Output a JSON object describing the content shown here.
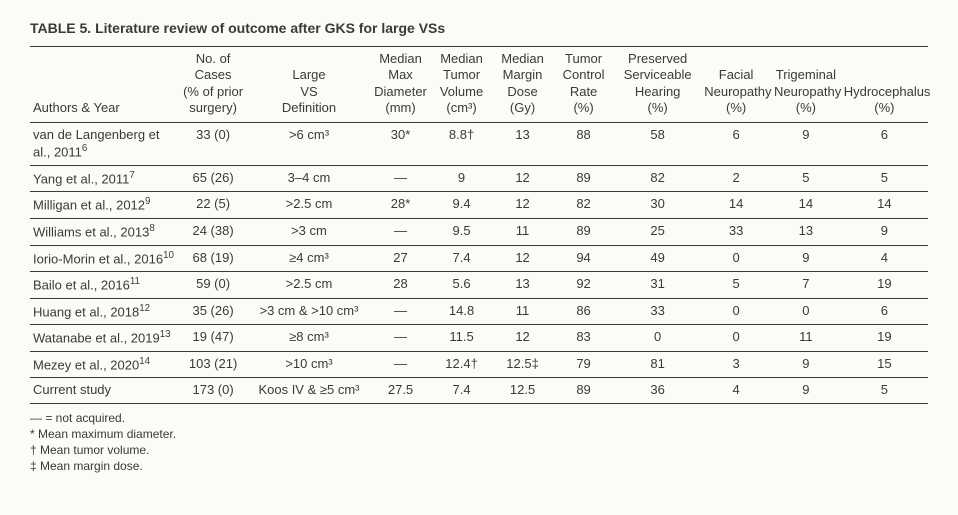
{
  "title": "TABLE 5. Literature review of outcome after GKS for large VSs",
  "columns": [
    "Authors & Year",
    "No. of Cases (% of prior surgery)",
    "Large VS Definition",
    "Median Max Diameter (mm)",
    "Median Tumor Volume (cm³)",
    "Median Margin Dose (Gy)",
    "Tumor Control Rate (%)",
    "Preserved Serviceable Hearing (%)",
    "Facial Neuropathy (%)",
    "Trigeminal Neuropathy (%)",
    "Hydrocephalus (%)"
  ],
  "col_widths_pct": [
    17,
    8,
    14,
    7,
    7,
    7,
    7,
    10,
    8,
    8,
    10
  ],
  "rows": [
    {
      "authors": "van de Langenberg et al., 2011",
      "ref": "6",
      "cells": [
        "33 (0)",
        ">6 cm³",
        "30*",
        "8.8†",
        "13",
        "88",
        "58",
        "6",
        "9",
        "6"
      ],
      "rule": true
    },
    {
      "authors": "Yang et al., 2011",
      "ref": "7",
      "cells": [
        "65 (26)",
        "3–4 cm",
        "—",
        "9",
        "12",
        "89",
        "82",
        "2",
        "5",
        "5"
      ],
      "rule": true
    },
    {
      "authors": "Milligan et al., 2012",
      "ref": "9",
      "cells": [
        "22 (5)",
        ">2.5 cm",
        "28*",
        "9.4",
        "12",
        "82",
        "30",
        "14",
        "14",
        "14"
      ],
      "rule": true
    },
    {
      "authors": "Williams et al., 2013",
      "ref": "8",
      "cells": [
        "24 (38)",
        ">3 cm",
        "—",
        "9.5",
        "11",
        "89",
        "25",
        "33",
        "13",
        "9"
      ],
      "rule": true
    },
    {
      "authors": "Iorio-Morin et al., 2016",
      "ref": "10",
      "cells": [
        "68 (19)",
        "≥4 cm³",
        "27",
        "7.4",
        "12",
        "94",
        "49",
        "0",
        "9",
        "4"
      ],
      "rule": true
    },
    {
      "authors": "Bailo et al., 2016",
      "ref": "11",
      "cells": [
        "59 (0)",
        ">2.5 cm",
        "28",
        "5.6",
        "13",
        "92",
        "31",
        "5",
        "7",
        "19"
      ],
      "rule": true
    },
    {
      "authors": "Huang et al., 2018",
      "ref": "12",
      "cells": [
        "35 (26)",
        ">3 cm & >10 cm³",
        "—",
        "14.8",
        "11",
        "86",
        "33",
        "0",
        "0",
        "6"
      ],
      "rule": true
    },
    {
      "authors": "Watanabe et al., 2019",
      "ref": "13",
      "cells": [
        "19 (47)",
        "≥8 cm³",
        "—",
        "11.5",
        "12",
        "83",
        "0",
        "0",
        "11",
        "19"
      ],
      "rule": true
    },
    {
      "authors": "Mezey et al., 2020",
      "ref": "14",
      "cells": [
        "103 (21)",
        ">10 cm³",
        "—",
        "12.4†",
        "12.5‡",
        "79",
        "81",
        "3",
        "9",
        "15"
      ],
      "rule": true
    },
    {
      "authors": "Current study",
      "ref": "",
      "cells": [
        "173 (0)",
        "Koos IV & ≥5 cm³",
        "27.5",
        "7.4",
        "12.5",
        "89",
        "36",
        "4",
        "9",
        "5"
      ],
      "rule": false
    }
  ],
  "footnotes": [
    "— = not acquired.",
    "* Mean maximum diameter.",
    "† Mean tumor volume.",
    "‡ Mean margin dose."
  ]
}
